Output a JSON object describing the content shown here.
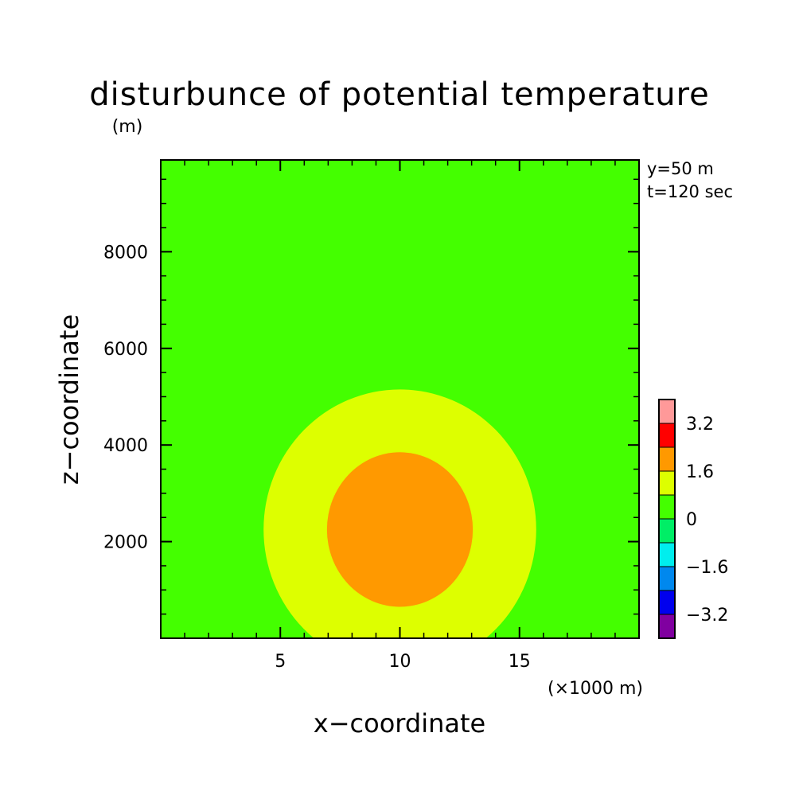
{
  "colors": {
    "background": "#ffffff",
    "axis": "#000000"
  },
  "chart_data": {
    "type": "heatmap",
    "title": "disturbunce of potential temperature",
    "xlabel": "x−coordinate",
    "ylabel": "z−coordinate",
    "y_unit": "(m)",
    "x_unit": "(×1000 m)",
    "annotations": [
      "y=50 m",
      "t=120 sec"
    ],
    "x_range": [
      0,
      20
    ],
    "y_range": [
      0,
      9900
    ],
    "x_ticks": [
      {
        "value": 5,
        "label": "5"
      },
      {
        "value": 10,
        "label": "10"
      },
      {
        "value": 15,
        "label": "15"
      }
    ],
    "x_minor_step": 1,
    "y_ticks": [
      {
        "value": 2000,
        "label": "2000"
      },
      {
        "value": 4000,
        "label": "4000"
      },
      {
        "value": 6000,
        "label": "6000"
      },
      {
        "value": 8000,
        "label": "8000"
      }
    ],
    "y_minor_step": 500,
    "background_level": {
      "range": [
        0,
        0.8
      ],
      "color": "#44ff00"
    },
    "regions": [
      {
        "shape": "ellipse",
        "center": [
          10,
          2250
        ],
        "radius_x": 5.7,
        "radius_z": 2900,
        "range": [
          0.8,
          1.6
        ],
        "color": "#ddff00"
      },
      {
        "shape": "ellipse",
        "center": [
          10,
          2250
        ],
        "radius_x": 3.05,
        "radius_z": 1600,
        "range": [
          1.6,
          2.4
        ],
        "color": "#ff9900"
      }
    ],
    "colorbar": {
      "levels": [
        -4.0,
        -3.2,
        -2.4,
        -1.6,
        -0.8,
        0,
        0.8,
        1.6,
        2.4,
        3.2,
        4.0
      ],
      "colors": [
        "#8000a0",
        "#0000ee",
        "#0088ee",
        "#00eeee",
        "#00ee66",
        "#44ff00",
        "#ddff00",
        "#ff9900",
        "#ff0000",
        "#ff9999"
      ],
      "tick_labels": [
        {
          "value": -3.2,
          "label": "−3.2"
        },
        {
          "value": -1.6,
          "label": "−1.6"
        },
        {
          "value": 0,
          "label": "0"
        },
        {
          "value": 1.6,
          "label": "1.6"
        },
        {
          "value": 3.2,
          "label": "3.2"
        }
      ]
    }
  }
}
